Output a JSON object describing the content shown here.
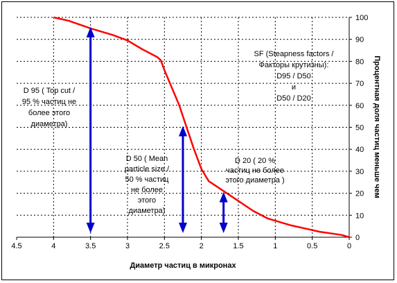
{
  "chart_data": {
    "type": "line",
    "title": "",
    "xlabel": "Диаметр частиц в микронах",
    "ylabel": "Процентная доля частиц меньше чем",
    "x_reversed": true,
    "xlim": [
      4.5,
      0
    ],
    "ylim": [
      0,
      100
    ],
    "x_ticks": [
      "4.5",
      "4",
      "3.5",
      "3",
      "2.5",
      "2",
      "1.5",
      "1",
      "0.5",
      "0"
    ],
    "y_ticks": [
      "0",
      "10",
      "20",
      "30",
      "40",
      "50",
      "60",
      "70",
      "80",
      "90",
      "100"
    ],
    "grid": "dashed",
    "y_axis_side": "right",
    "colors": {
      "curve": "#ff0000",
      "arrows": "#0000cc",
      "grid": "#000000"
    },
    "series": [
      {
        "x": [
          4.0,
          3.8,
          3.5,
          3.2,
          3.0,
          2.8,
          2.6,
          2.55,
          2.5,
          2.4,
          2.3,
          2.2,
          2.1,
          2.0,
          1.9,
          1.7,
          1.5,
          1.3,
          1.1,
          1.0,
          0.8,
          0.6,
          0.4,
          0.2,
          0.1,
          0.0
        ],
        "y": [
          100,
          98.5,
          95,
          92,
          89.5,
          85.5,
          82,
          80.5,
          76,
          68,
          60,
          50,
          40,
          31,
          25.5,
          21,
          16.5,
          12,
          8.5,
          7.5,
          5.5,
          4,
          2.5,
          1.5,
          1,
          0
        ]
      }
    ],
    "arrows": [
      {
        "x": 3.5,
        "y_top": 95
      },
      {
        "x": 2.25,
        "y_top": 50
      },
      {
        "x": 1.7,
        "y_top": 20
      }
    ],
    "annotations": [
      {
        "lines": [
          "D 95 ( Top cut /",
          "95 % частиц не",
          "более этого",
          "диаметра)"
        ]
      },
      {
        "lines": [
          "D 50 ( Mean",
          "particle size /",
          "50 % частиц",
          "не более",
          "этого",
          "диаметра)"
        ]
      },
      {
        "lines": [
          "D 20 ( 20 %",
          "частиц не более",
          "этого диаметра )"
        ]
      },
      {
        "lines": [
          "SF (Steapness factors /",
          "Факторы крутизны):",
          "D95 / D50",
          "и",
          "D50 / D20"
        ]
      }
    ]
  }
}
